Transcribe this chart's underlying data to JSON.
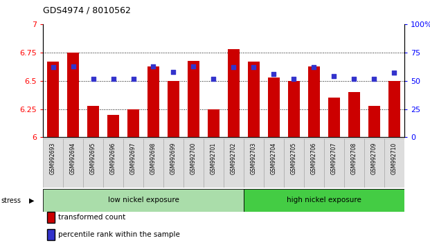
{
  "title": "GDS4974 / 8010562",
  "samples": [
    "GSM992693",
    "GSM992694",
    "GSM992695",
    "GSM992696",
    "GSM992697",
    "GSM992698",
    "GSM992699",
    "GSM992700",
    "GSM992701",
    "GSM992702",
    "GSM992703",
    "GSM992704",
    "GSM992705",
    "GSM992706",
    "GSM992707",
    "GSM992708",
    "GSM992709",
    "GSM992710"
  ],
  "red_values": [
    6.67,
    6.75,
    6.28,
    6.2,
    6.25,
    6.63,
    6.5,
    6.68,
    6.25,
    6.78,
    6.67,
    6.53,
    6.5,
    6.63,
    6.35,
    6.4,
    6.28,
    6.5
  ],
  "blue_percentiles": [
    62,
    63,
    52,
    52,
    52,
    63,
    58,
    63,
    52,
    62,
    62,
    56,
    52,
    62,
    54,
    52,
    52,
    57
  ],
  "ymin": 6.0,
  "ymax": 7.0,
  "yticks": [
    6,
    6.25,
    6.5,
    6.75,
    7
  ],
  "right_yticks": [
    0,
    25,
    50,
    75,
    100
  ],
  "bar_color": "#cc0000",
  "dot_color": "#3333cc",
  "group1_label": "low nickel exposure",
  "group2_label": "high nickel exposure",
  "group1_count": 10,
  "group2_count": 8,
  "legend1": "transformed count",
  "legend2": "percentile rank within the sample",
  "stress_label": "stress",
  "group1_bg": "#aaddaa",
  "group2_bg": "#44cc44",
  "xtick_bg": "#dddddd"
}
